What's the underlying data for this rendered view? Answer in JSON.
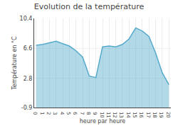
{
  "chart_data": {
    "type": "area",
    "title": "Evolution de la température",
    "xlabel": "heure par heure",
    "ylabel": "Température en °C",
    "x": [
      0,
      1,
      2,
      3,
      4,
      5,
      6,
      7,
      8,
      9,
      10,
      11,
      12,
      13,
      14,
      15,
      16,
      17,
      18,
      19,
      20
    ],
    "values": [
      7.0,
      7.1,
      7.3,
      7.5,
      7.2,
      6.9,
      6.3,
      5.5,
      3.1,
      2.9,
      6.8,
      6.9,
      6.8,
      7.1,
      7.8,
      9.2,
      8.8,
      8.1,
      6.0,
      3.5,
      2.0
    ],
    "color": "#55aacc",
    "xlim": [
      -0.3,
      20.3
    ],
    "xticks": [
      0,
      1,
      2,
      3,
      4,
      5,
      6,
      7,
      8,
      9,
      10,
      11,
      12,
      13,
      14,
      15,
      16,
      17,
      18,
      19,
      20
    ],
    "ylim": [
      -0.9,
      10.4
    ],
    "yticks": [
      -0.9,
      2.8,
      6.6,
      10.4
    ],
    "grid": true
  }
}
